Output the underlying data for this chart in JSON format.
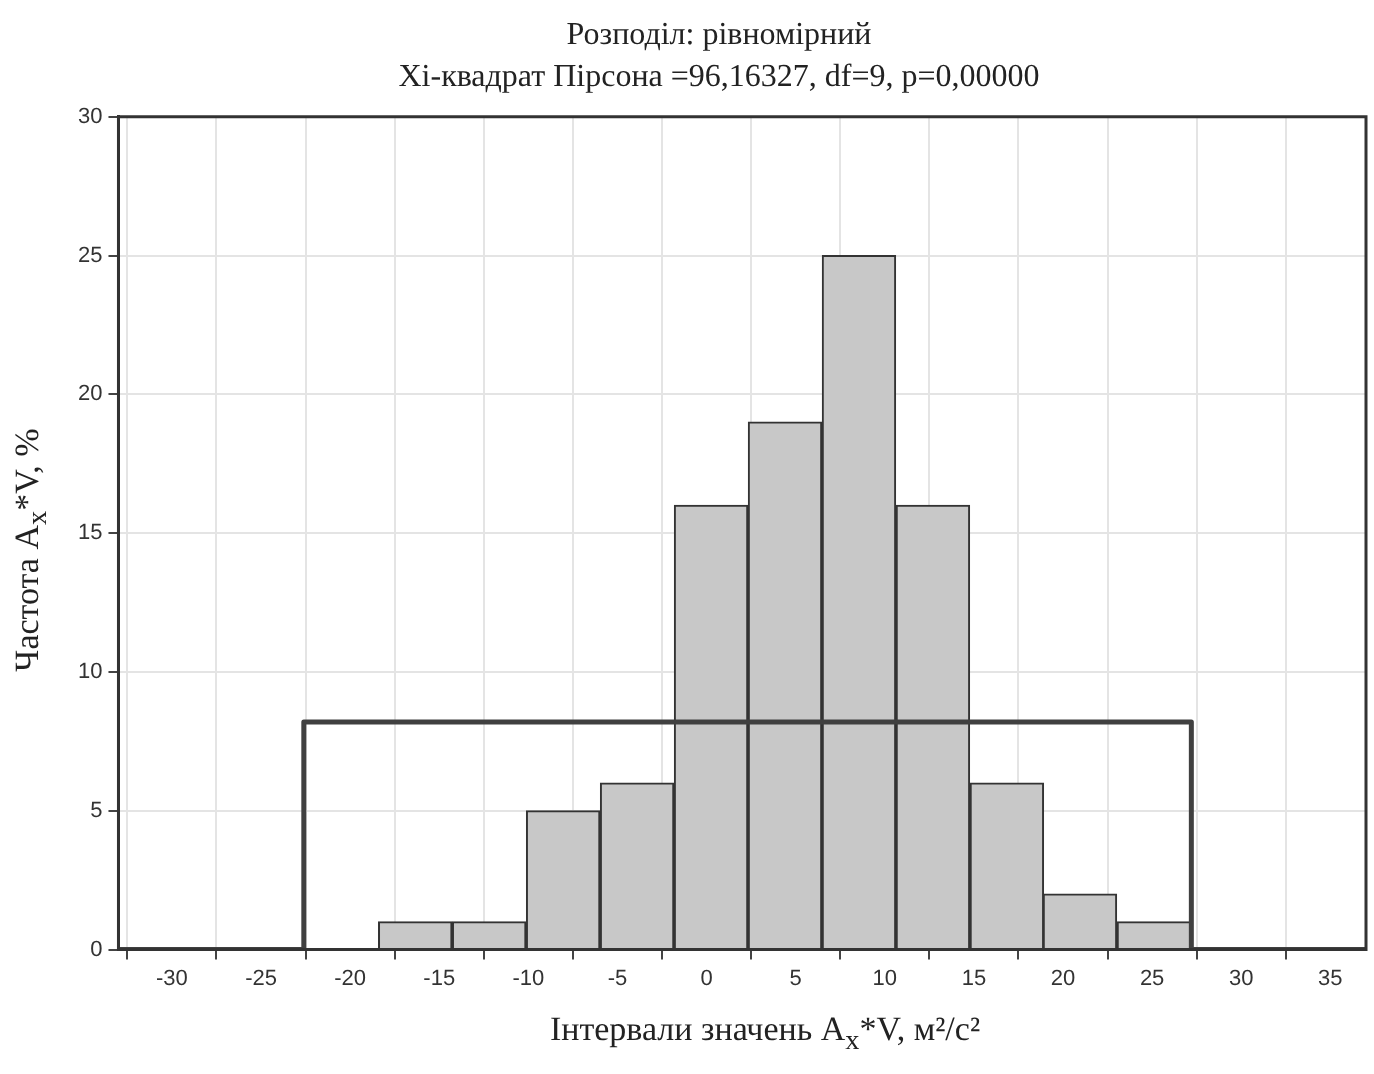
{
  "chart_data": {
    "type": "histogram",
    "title": "Розподіл: рівномірний",
    "subtitle": "Хі-квадрат Пірсона =96,16327, df=9, p=0,00000",
    "xlabel": "Інтервали значень A$_{x}$*V, м²/с²",
    "ylabel": "Частота A$_{x}$*V, %",
    "series": [
      {
        "color": "#c8c8c8",
        "bins": [
          -18.4,
          -14.3,
          -10.1,
          -6.0,
          -1.8,
          2.3,
          6.5,
          10.6,
          14.8,
          18.9,
          23.0,
          27.2
        ],
        "values": [
          1,
          1,
          5,
          6,
          16,
          19,
          25,
          16,
          6,
          2,
          1
        ]
      },
      {
        "type": "line",
        "color": "#404040",
        "x": [
          -33,
          -22.6,
          -22.6,
          27.2,
          27.2,
          37
        ],
        "values": [
          0,
          0,
          8.2,
          8.2,
          0,
          0
        ]
      }
    ],
    "xlim": [
      -33,
      37
    ],
    "xticks": [
      -30,
      -25,
      -20,
      -15,
      -10,
      -5,
      0,
      5,
      10,
      15,
      20,
      25,
      30,
      35
    ],
    "ylim": [
      0,
      30
    ],
    "yticks": [
      0,
      5,
      10,
      15,
      20,
      25,
      30
    ],
    "grid": true,
    "legend": false,
    "marker": "none",
    "line_style": "solid"
  }
}
